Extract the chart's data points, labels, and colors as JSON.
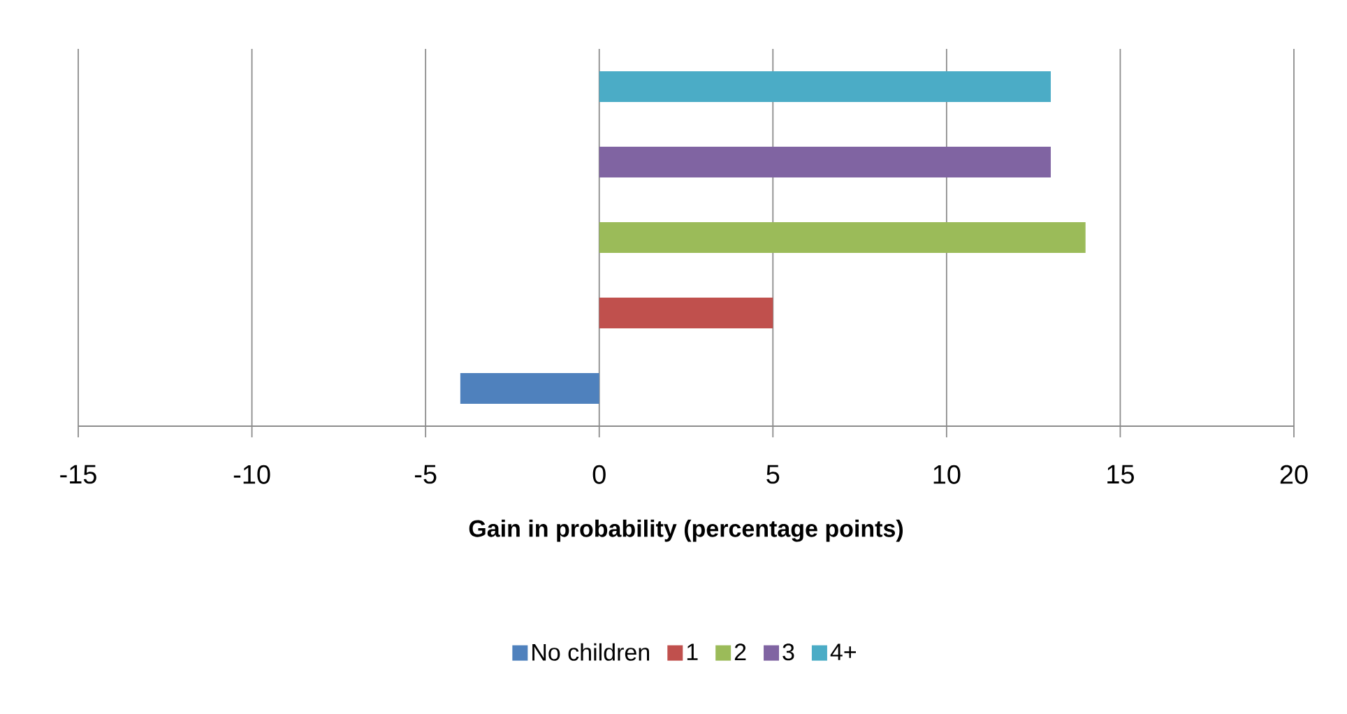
{
  "chart_data": {
    "type": "bar",
    "orientation": "horizontal",
    "xlabel": "Gain in probability (percentage points)",
    "categories": [
      null
    ],
    "series": [
      {
        "name": "No children",
        "color": "#4f81bd",
        "values": [
          -4
        ]
      },
      {
        "name": "1",
        "color": "#c0504d",
        "values": [
          5
        ]
      },
      {
        "name": "2",
        "color": "#9bbb59",
        "values": [
          14
        ]
      },
      {
        "name": "3",
        "color": "#8064a2",
        "values": [
          13
        ]
      },
      {
        "name": "4+",
        "color": "#4bacc6",
        "values": [
          13
        ]
      }
    ],
    "xlim": [
      -15,
      20
    ],
    "xticks": [
      -15,
      -10,
      -5,
      0,
      5,
      10,
      15,
      20
    ],
    "grid": "x",
    "legend": "bottom"
  }
}
